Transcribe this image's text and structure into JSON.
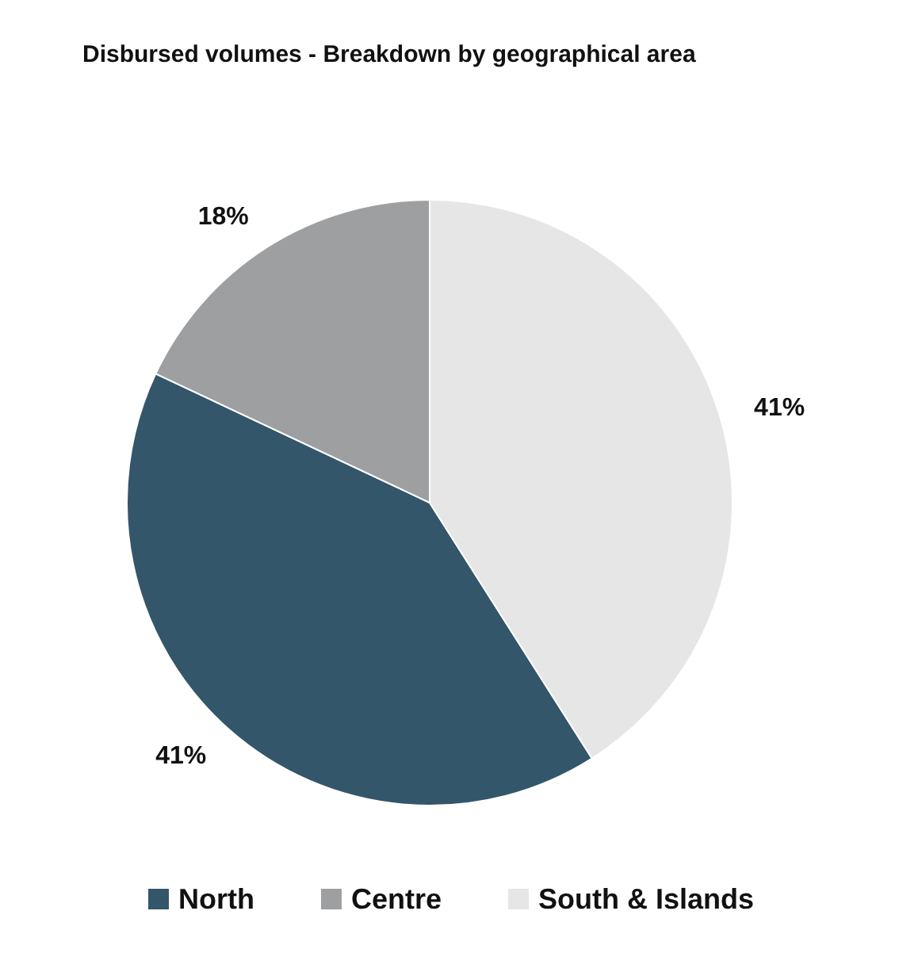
{
  "chart_data": {
    "type": "pie",
    "title": "Disbursed volumes - Breakdown by geographical area",
    "categories": [
      "North",
      "Centre",
      "South & Islands"
    ],
    "values": [
      41,
      18,
      41
    ],
    "colors": [
      "#34566a",
      "#9d9fa0",
      "#e6e6e6"
    ],
    "value_labels": [
      "41%",
      "18%",
      "41%"
    ],
    "legend": "bottom"
  }
}
